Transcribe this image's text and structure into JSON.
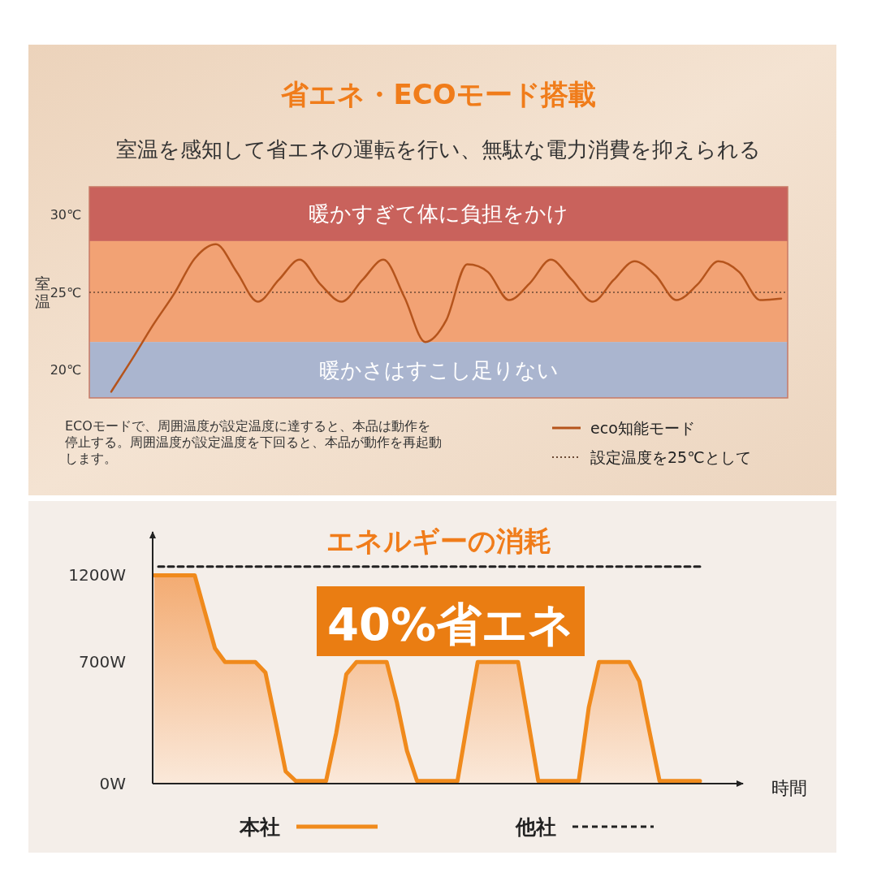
{
  "chart_data": [
    {
      "type": "line",
      "title": "省エネ・ECOモード搭載",
      "subtitle": "室温を感知して省エネの運転を行い、無駄な電力消費を抑えられる",
      "ylabel": "室温",
      "categories": [
        null,
        null,
        null,
        null,
        null,
        null,
        null,
        null,
        null,
        null,
        null,
        null,
        null,
        null,
        null,
        null,
        null,
        null,
        null,
        null,
        null,
        null,
        null,
        null,
        null,
        null,
        null,
        null,
        null,
        null,
        null,
        null,
        null
      ],
      "series": [
        {
          "name": "eco知能モード",
          "color": "#b5541c",
          "values": [
            18.6,
            20.7,
            22.9,
            24.9,
            27.2,
            28.1,
            26.3,
            24.4,
            25.8,
            27.1,
            25.5,
            24.4,
            25.8,
            27.1,
            24.7,
            21.8,
            23.2,
            26.8,
            26.3,
            24.5,
            25.6,
            27.1,
            25.8,
            24.4,
            25.8,
            27.0,
            26.1,
            24.5,
            25.5,
            27.0,
            26.3,
            24.5,
            24.6
          ]
        }
      ],
      "ylim": [
        18.2,
        31.8
      ],
      "yticks": [
        {
          "value": 20,
          "label": "20℃"
        },
        {
          "value": 25,
          "label": "25℃"
        },
        {
          "value": 30,
          "label": "30℃"
        }
      ],
      "tick_labels": "y",
      "bands": [
        {
          "axis": "y",
          "from": 28.3,
          "to": 31.8,
          "label": "暖かすぎて体に負担をかけ",
          "color": "#c9625c"
        },
        {
          "axis": "y",
          "from": 21.8,
          "to": 28.3,
          "label": null,
          "color": "#f2a274"
        },
        {
          "axis": "y",
          "from": 18.2,
          "to": 21.8,
          "label": "暖かさはすこし足りない",
          "color": "#aab5cf"
        }
      ],
      "ref_lines": [
        {
          "axis": "y",
          "value": 25,
          "label": "設定温度を25℃として",
          "color": "#6b4a35",
          "line_style": "dotted"
        }
      ],
      "annotations": [
        "ECOモードで、周囲温度が設定温度に達すると、本品は動作を停止する。周囲温度が設定温度を下回ると、本品が動作を再起動します。"
      ],
      "legend": "bottom"
    },
    {
      "type": "line",
      "title": "エネルギーの消耗",
      "xlabel": "時間",
      "categories": [
        null,
        null,
        null,
        null,
        null,
        null,
        null,
        null,
        null,
        null,
        null,
        null,
        null,
        null,
        null,
        null,
        null,
        null,
        null,
        null,
        null,
        null,
        null,
        null,
        null,
        null,
        null,
        null,
        null,
        null,
        null,
        null,
        null,
        null,
        null,
        null,
        null,
        null,
        null,
        null,
        null,
        null,
        null,
        null,
        null,
        null,
        null,
        null,
        null,
        null,
        null,
        null,
        null,
        null,
        null
      ],
      "series": [
        {
          "name": "本社",
          "type": "area",
          "color": "#f08a1c",
          "values": [
            1200,
            1200,
            1200,
            1200,
            1200,
            990,
            780,
            700,
            700,
            700,
            700,
            640,
            360,
            70,
            15,
            15,
            15,
            15,
            290,
            630,
            700,
            700,
            700,
            700,
            470,
            190,
            15,
            15,
            15,
            15,
            15,
            360,
            700,
            700,
            700,
            700,
            700,
            360,
            15,
            15,
            15,
            15,
            15,
            440,
            700,
            700,
            700,
            700,
            590,
            300,
            15,
            15,
            15,
            15,
            15
          ]
        },
        {
          "name": "他社",
          "type": "line",
          "color": "#222222",
          "line_style": "dashed",
          "values": [
            1250,
            1250,
            1250,
            1250,
            1250,
            1250,
            1250,
            1250,
            1250,
            1250,
            1250,
            1250,
            1250,
            1250,
            1250,
            1250,
            1250,
            1250,
            1250,
            1250,
            1250,
            1250,
            1250,
            1250,
            1250,
            1250,
            1250,
            1250,
            1250,
            1250,
            1250,
            1250,
            1250,
            1250,
            1250,
            1250,
            1250,
            1250,
            1250,
            1250,
            1250,
            1250,
            1250,
            1250,
            1250,
            1250,
            1250,
            1250,
            1250,
            1250,
            1250,
            1250,
            1250,
            1250,
            1250
          ]
        }
      ],
      "ylim": [
        0,
        1450
      ],
      "yticks": [
        {
          "value": 0,
          "label": "0W"
        },
        {
          "value": 700,
          "label": "700W"
        },
        {
          "value": 1200,
          "label": "1200W"
        }
      ],
      "tick_labels": "y",
      "annotations": [
        "40%省エネ"
      ],
      "legend": "bottom"
    }
  ]
}
